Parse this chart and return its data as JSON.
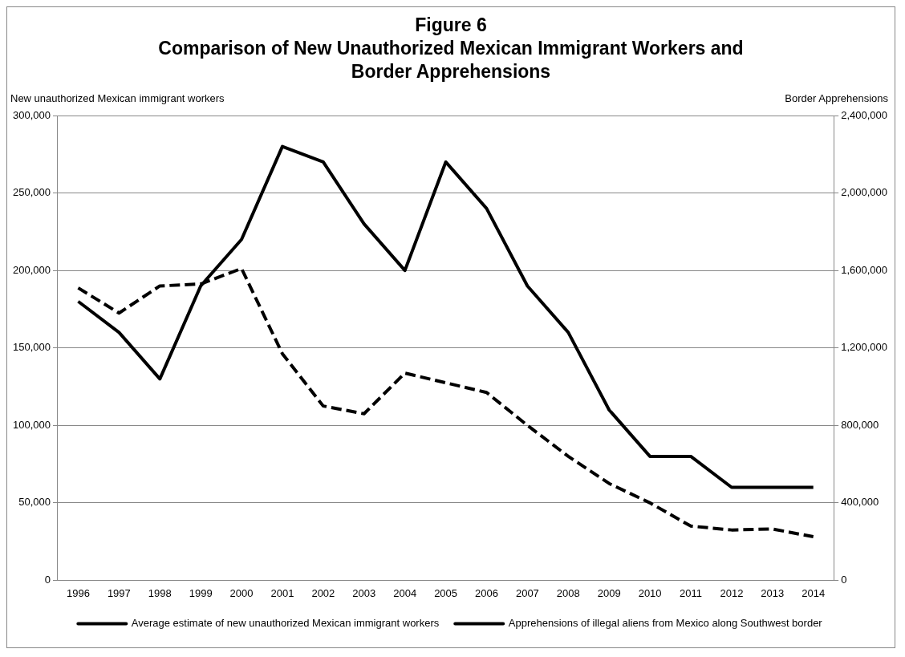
{
  "chart_data": {
    "type": "line",
    "title": "Figure 6",
    "subtitle": "Comparison of New Unauthorized Mexican Immigrant Workers and Border Apprehensions",
    "ylabel": "New unauthorized Mexican immigrant workers",
    "y2label": "Border Apprehensions",
    "categories": [
      "1996",
      "1997",
      "1998",
      "1999",
      "2000",
      "2001",
      "2002",
      "2003",
      "2004",
      "2005",
      "2006",
      "2007",
      "2008",
      "2009",
      "2010",
      "2011",
      "2012",
      "2013",
      "2014"
    ],
    "series": [
      {
        "name": "Average estimate of new unauthorized Mexican immigrant workers",
        "color": "#000000",
        "line_style": "solid",
        "values": [
          180000,
          160000,
          130000,
          190000,
          220000,
          280000,
          270000,
          230000,
          200000,
          270000,
          240000,
          190000,
          160000,
          110000,
          80000,
          80000,
          60000,
          60000,
          60000
        ]
      },
      {
        "name": "Apprehensions of illegal aliens from Mexico along Southwest border",
        "color": "#000000",
        "line_style": "dashed",
        "axis": "y2",
        "values": [
          1510000,
          1380000,
          1520000,
          1530000,
          1610000,
          1170000,
          900000,
          860000,
          1070000,
          1020000,
          970000,
          800000,
          640000,
          500000,
          400000,
          280000,
          260000,
          265000,
          225000
        ]
      }
    ],
    "ylim": [
      0,
      300000
    ],
    "yticks": [
      {
        "value": 0,
        "label": "0"
      },
      {
        "value": 50000,
        "label": "50,000"
      },
      {
        "value": 100000,
        "label": "100,000"
      },
      {
        "value": 150000,
        "label": "150,000"
      },
      {
        "value": 200000,
        "label": "200,000"
      },
      {
        "value": 250000,
        "label": "250,000"
      },
      {
        "value": 300000,
        "label": "300,000"
      }
    ],
    "y2lim": [
      0,
      2400000
    ],
    "y2ticks": [
      {
        "value": 0,
        "label": "0"
      },
      {
        "value": 400000,
        "label": "400,000"
      },
      {
        "value": 800000,
        "label": "800,000"
      },
      {
        "value": 1200000,
        "label": "1,200,000"
      },
      {
        "value": 1600000,
        "label": "1,600,000"
      },
      {
        "value": 2000000,
        "label": "2,000,000"
      },
      {
        "value": 2400000,
        "label": "2,400,000"
      }
    ],
    "grid": "y",
    "legend": "bottom",
    "marker": "none"
  }
}
